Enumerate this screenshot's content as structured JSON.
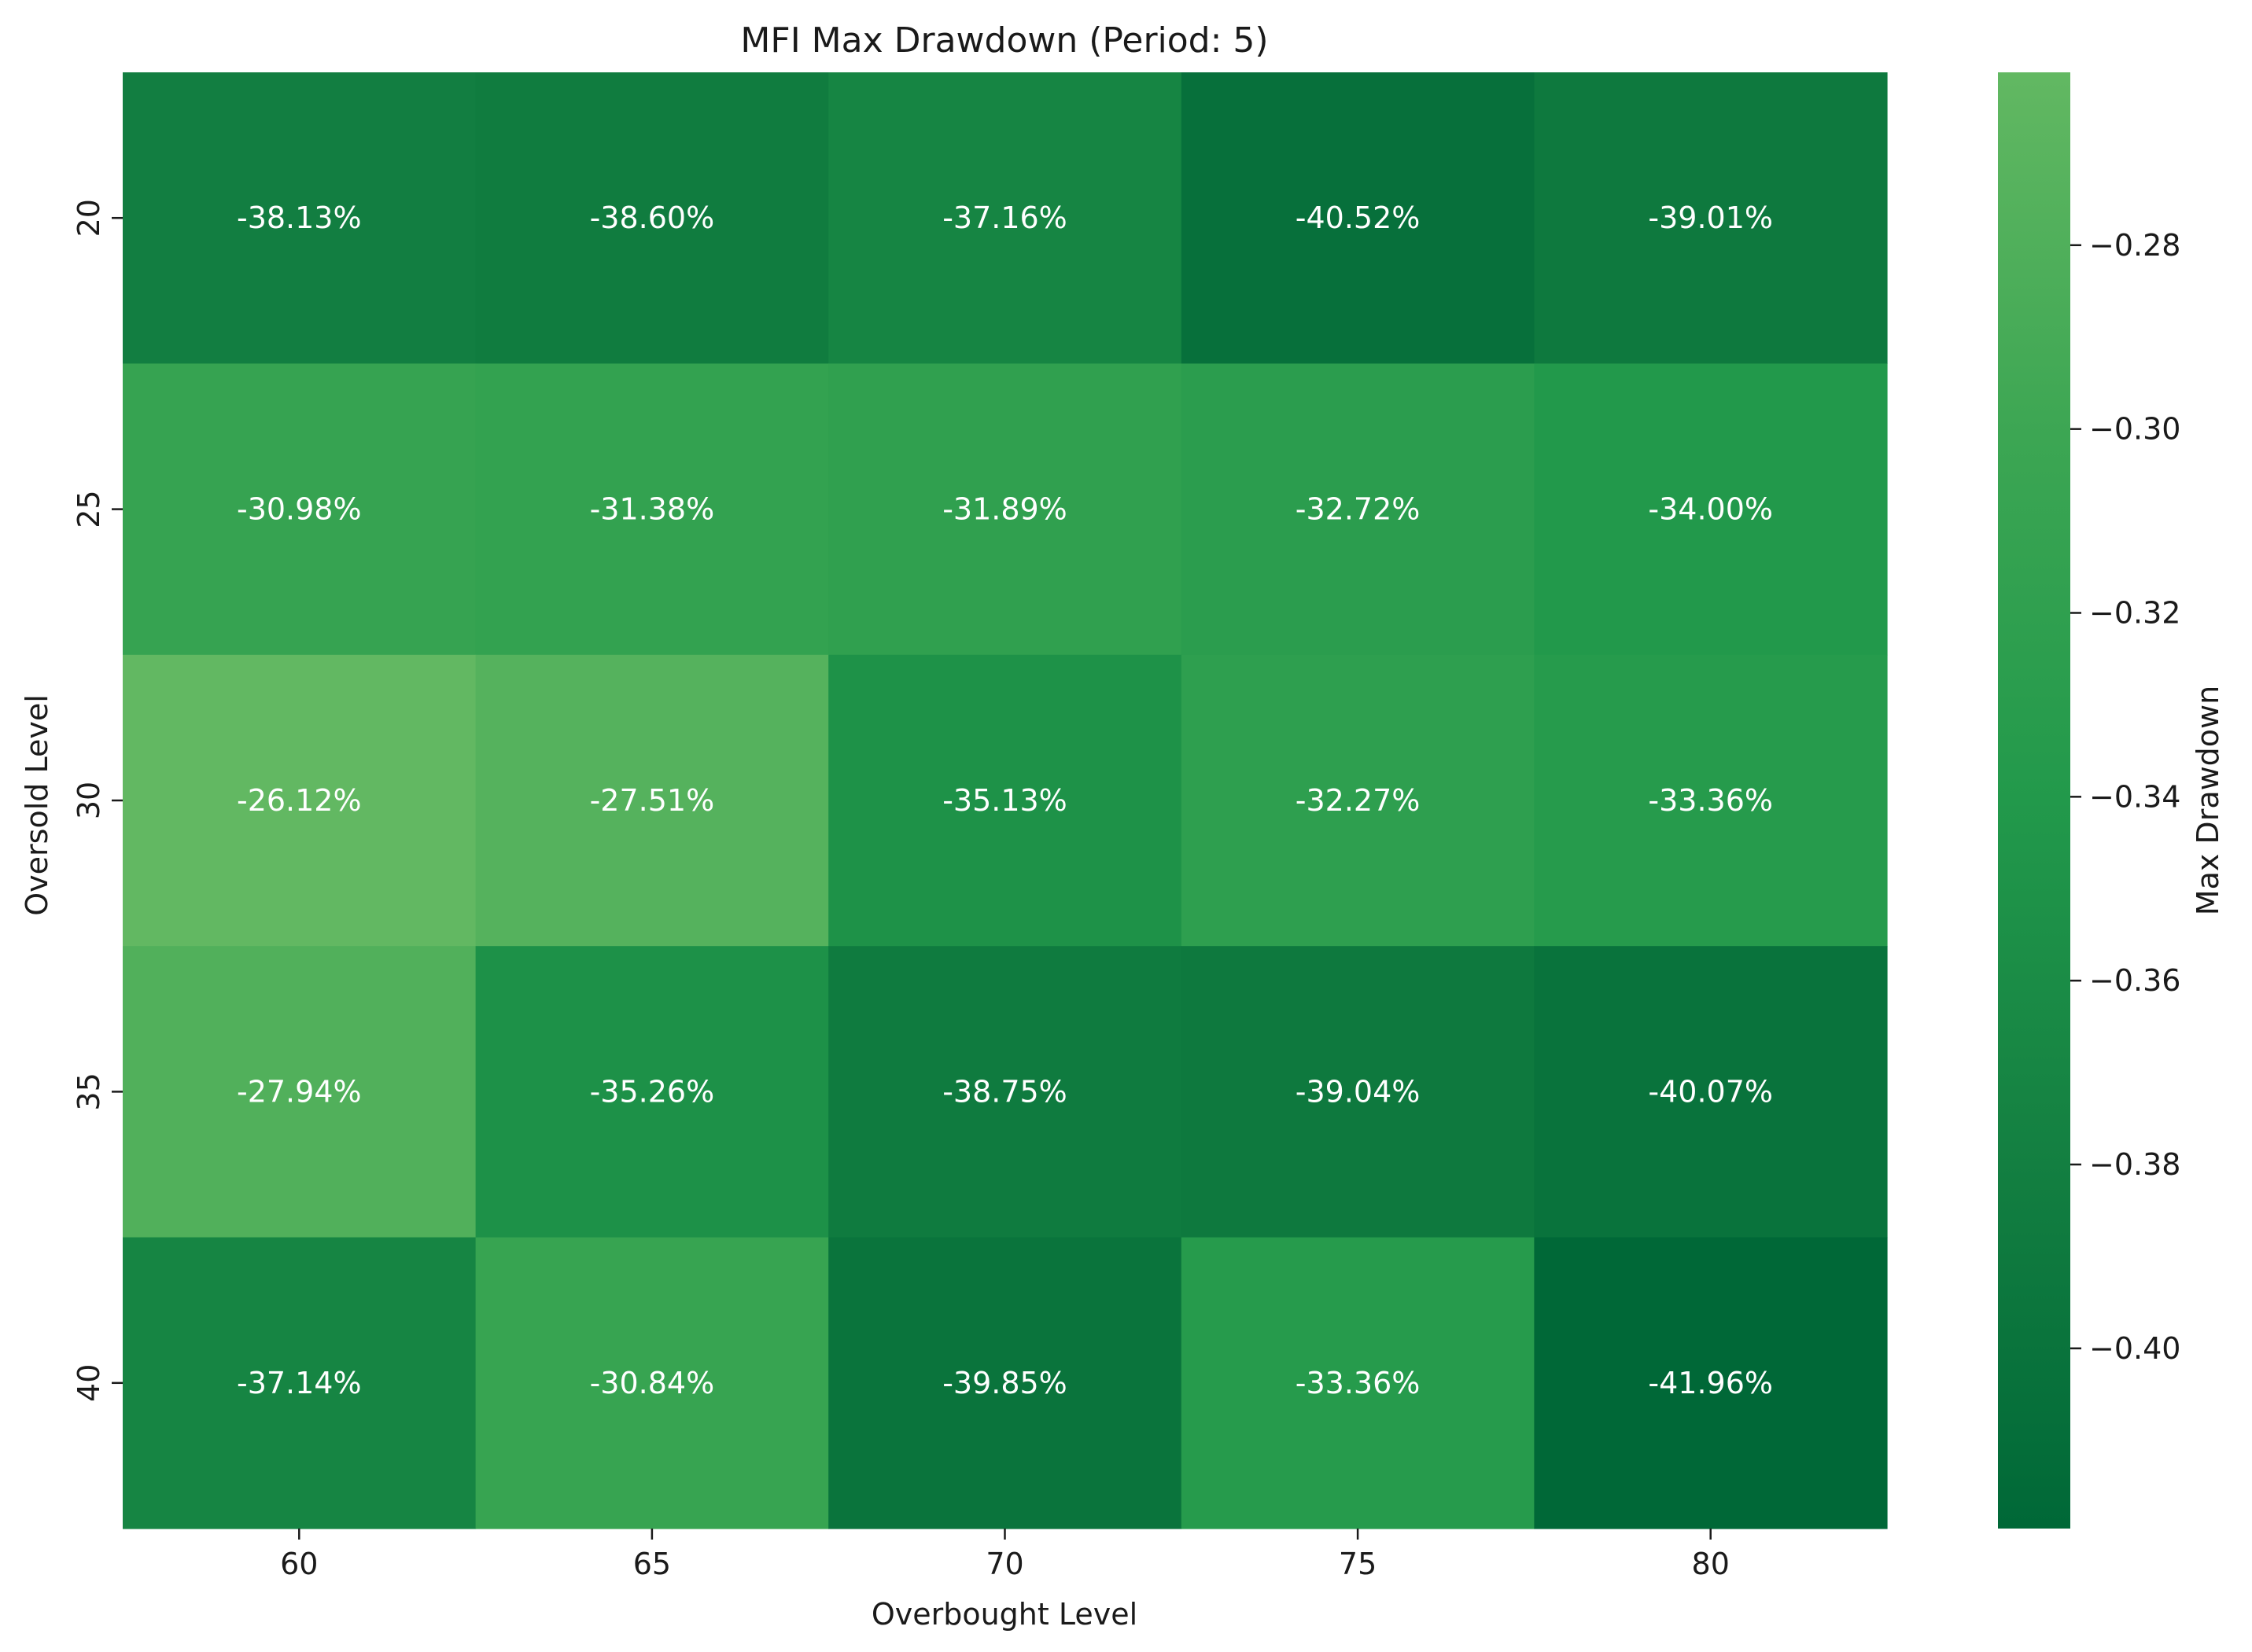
{
  "chart_data": {
    "type": "heatmap",
    "title": "MFI Max Drawdown (Period: 5)",
    "xlabel": "Overbought Level",
    "ylabel": "Oversold Level",
    "x_categories": [
      "60",
      "65",
      "70",
      "75",
      "80"
    ],
    "y_categories": [
      "20",
      "25",
      "30",
      "35",
      "40"
    ],
    "values": [
      [
        -0.3813,
        -0.386,
        -0.3716,
        -0.4052,
        -0.3901
      ],
      [
        -0.3098,
        -0.3138,
        -0.3189,
        -0.3272,
        -0.34
      ],
      [
        -0.2612,
        -0.2751,
        -0.3513,
        -0.3227,
        -0.3336
      ],
      [
        -0.2794,
        -0.3526,
        -0.3875,
        -0.3904,
        -0.4007
      ],
      [
        -0.3714,
        -0.3084,
        -0.3985,
        -0.3336,
        -0.4196
      ]
    ],
    "cell_labels": [
      [
        "-38.13%",
        "-38.60%",
        "-37.16%",
        "-40.52%",
        "-39.01%"
      ],
      [
        "-30.98%",
        "-31.38%",
        "-31.89%",
        "-32.72%",
        "-34.00%"
      ],
      [
        "-26.12%",
        "-27.51%",
        "-35.13%",
        "-32.27%",
        "-33.36%"
      ],
      [
        "-27.94%",
        "-35.26%",
        "-38.75%",
        "-39.04%",
        "-40.07%"
      ],
      [
        "-37.14%",
        "-30.84%",
        "-39.85%",
        "-33.36%",
        "-41.96%"
      ]
    ],
    "colorbar": {
      "label": "Max Drawdown",
      "range": [
        -0.4196,
        -0.2612
      ],
      "ticks": [
        -0.28,
        -0.3,
        -0.32,
        -0.34,
        -0.36,
        -0.38,
        -0.4
      ],
      "tick_labels": [
        "−0.28",
        "−0.30",
        "−0.32",
        "−0.34",
        "−0.36",
        "−0.38",
        "−0.40"
      ],
      "color_low": "#006837",
      "color_high": "#62b862"
    }
  }
}
